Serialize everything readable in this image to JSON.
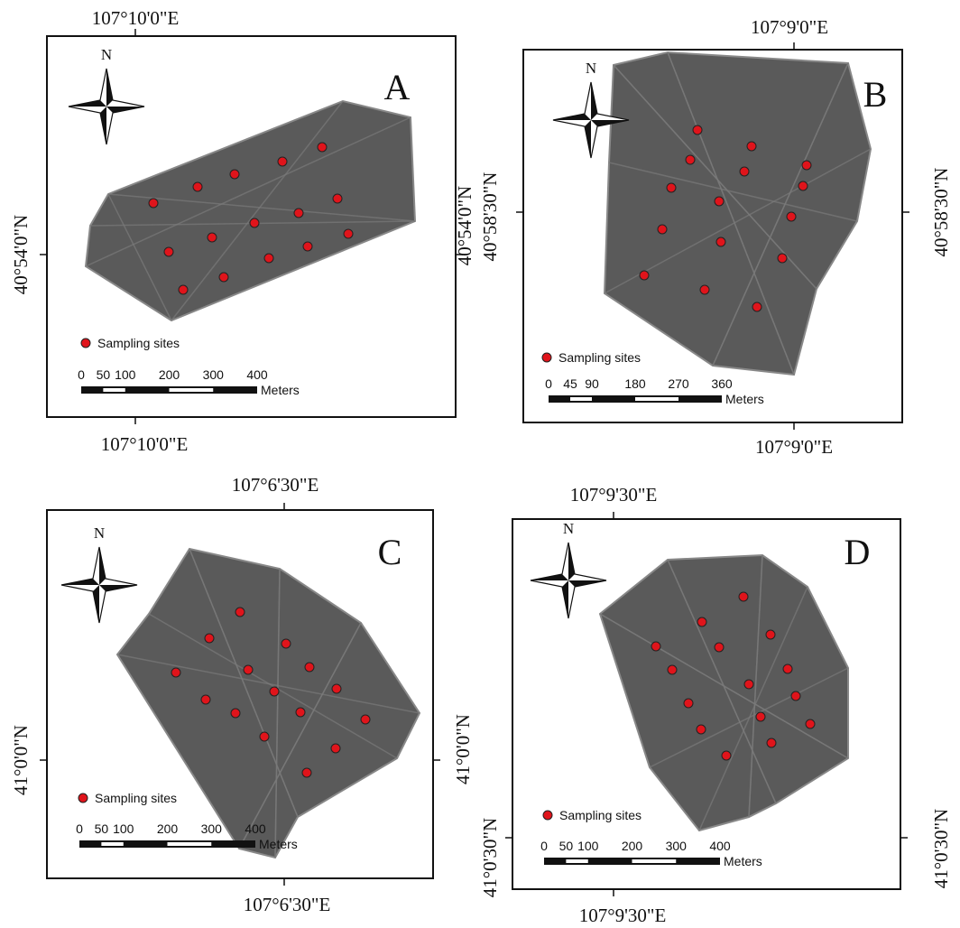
{
  "panels": [
    {
      "letter": "A",
      "north": "N",
      "top_label": "107°10'0\"E",
      "bottom_label": "107°10'0\"E",
      "left_label": "40°54'0\"N",
      "right_label": "40°54'0\"N",
      "legend": "Sampling sites",
      "scale_ticks": [
        0,
        50,
        100,
        200,
        300,
        400
      ],
      "scale_unit": "Meters"
    },
    {
      "letter": "B",
      "north": "N",
      "top_label": "107°9'0\"E",
      "bottom_label": "107°9'0\"E",
      "left_label": "40°58'30\"N",
      "right_label": "40°58'30\"N",
      "legend": "Sampling sites",
      "scale_ticks": [
        0,
        45,
        90,
        180,
        270,
        360
      ],
      "scale_unit": "Meters"
    },
    {
      "letter": "C",
      "north": "N",
      "top_label": "107°6'30\"E",
      "bottom_label": "107°6'30\"E",
      "left_label": "41°0'0\"N",
      "right_label": "41°0'0\"N",
      "legend": "Sampling sites",
      "scale_ticks": [
        0,
        50,
        100,
        200,
        300,
        400
      ],
      "scale_unit": "Meters"
    },
    {
      "letter": "D",
      "north": "N",
      "top_label": "107°9'30\"E",
      "bottom_label": "107°9'30\"E",
      "left_label": "41°0'30\"N",
      "right_label": "41°0'30\"N",
      "legend": "Sampling sites",
      "scale_ticks": [
        0,
        50,
        100,
        200,
        300,
        400
      ],
      "scale_unit": "Meters"
    }
  ]
}
